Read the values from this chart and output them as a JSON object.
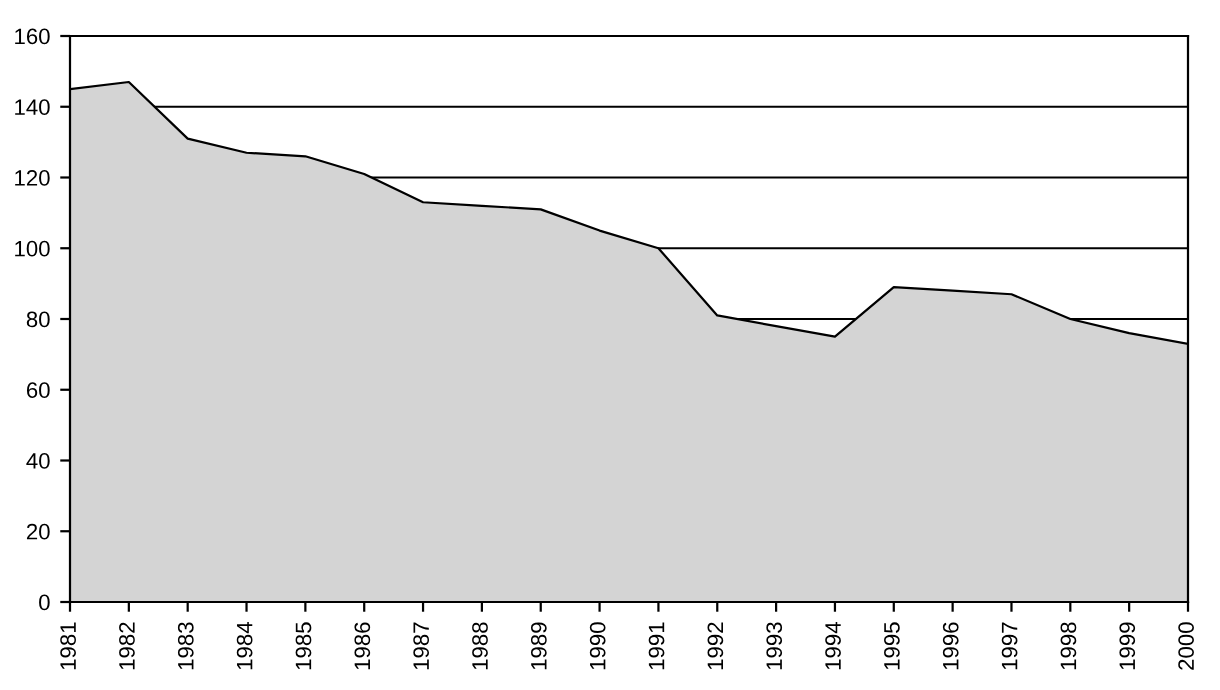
{
  "chart_data": {
    "type": "area",
    "categories": [
      "1981",
      "1982",
      "1983",
      "1984",
      "1985",
      "1986",
      "1987",
      "1988",
      "1989",
      "1990",
      "1991",
      "1992",
      "1993",
      "1994",
      "1995",
      "1996",
      "1997",
      "1998",
      "1999",
      "2000"
    ],
    "series": [
      {
        "color": "#d4d4d4",
        "values": [
          145,
          147,
          131,
          127,
          126,
          121,
          113,
          112,
          111,
          105,
          100,
          81,
          78,
          75,
          89,
          88,
          87,
          80,
          76,
          73
        ]
      }
    ],
    "ylim": [
      0,
      160
    ],
    "yticks": [
      0,
      20,
      40,
      60,
      80,
      100,
      120,
      140,
      160
    ],
    "grid": "y",
    "legend": false
  }
}
